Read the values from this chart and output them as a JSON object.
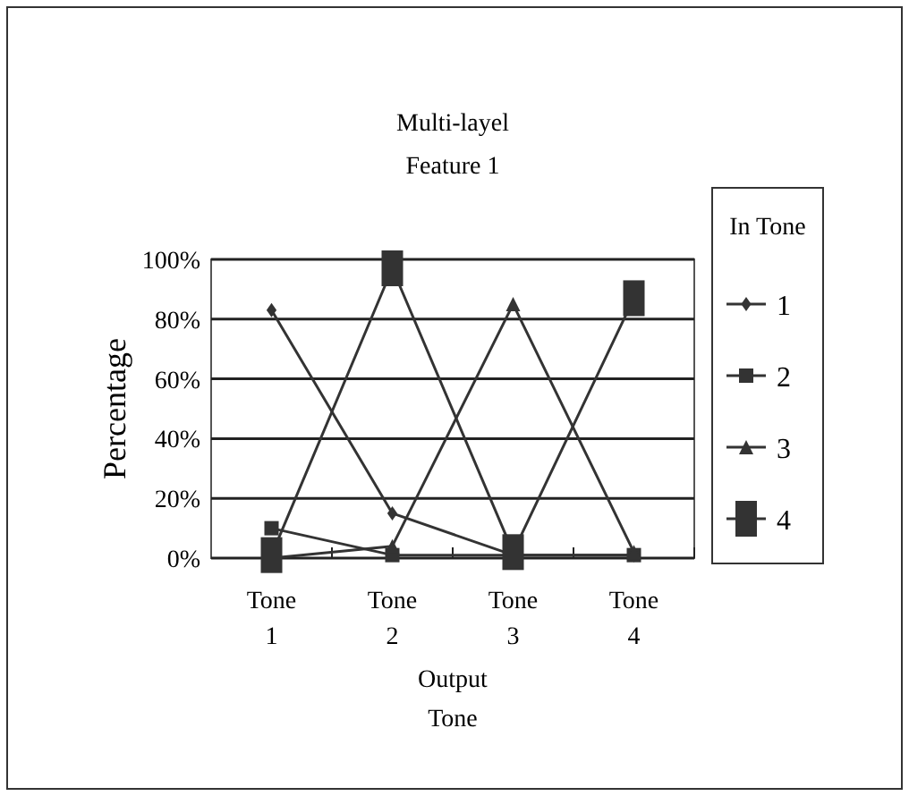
{
  "chart_data": {
    "type": "line",
    "title": "Multi-layel",
    "subtitle": "Feature 1",
    "xlabel": "Output Tone",
    "ylabel": "Percentage",
    "legend_title": "In Tone",
    "categories": [
      "Tone 1",
      "Tone 2",
      "Tone 3",
      "Tone 4"
    ],
    "ylim": [
      0,
      100
    ],
    "yticks": [
      {
        "value": 0,
        "label": "0%"
      },
      {
        "value": 20,
        "label": "20%"
      },
      {
        "value": 40,
        "label": "40%"
      },
      {
        "value": 60,
        "label": "60%"
      },
      {
        "value": 80,
        "label": "80%"
      },
      {
        "value": 100,
        "label": "100%"
      }
    ],
    "grid": "y",
    "legend": "right",
    "line_style": "solid",
    "series": [
      {
        "name": "1",
        "color": "#333333",
        "marker": "diamond",
        "values": [
          83,
          15,
          1,
          1
        ]
      },
      {
        "name": "2",
        "color": "#333333",
        "marker": "square",
        "values": [
          10,
          1,
          1,
          1
        ]
      },
      {
        "name": "3",
        "color": "#333333",
        "marker": "triangle",
        "values": [
          0,
          4,
          85,
          2
        ]
      },
      {
        "name": "4",
        "color": "#333333",
        "marker": "square",
        "values": [
          1,
          97,
          2,
          87
        ]
      }
    ]
  }
}
